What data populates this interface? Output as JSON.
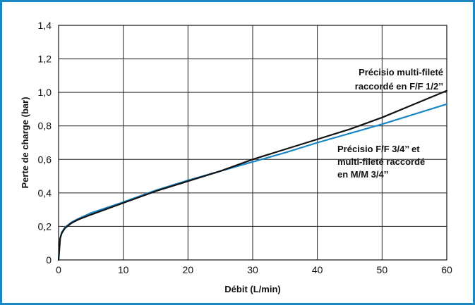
{
  "chart_data": {
    "type": "line",
    "title": "",
    "xlabel": "Débit (L/min)",
    "ylabel": "Perte de charge (bar)",
    "xlim": [
      0,
      60
    ],
    "ylim": [
      0,
      1.4
    ],
    "x_ticks": [
      "0",
      "10",
      "20",
      "30",
      "40",
      "50",
      "60"
    ],
    "y_ticks": [
      "0",
      "0,2",
      "0,4",
      "0,6",
      "0,8",
      "1,0",
      "1,2",
      "1,4"
    ],
    "grid": true,
    "frame_color": "#1a86c3",
    "series": [
      {
        "color": "#111111",
        "x": [
          0,
          0.25,
          0.5,
          1,
          2,
          3,
          5,
          10,
          15,
          20,
          25,
          30,
          35,
          40,
          45,
          50,
          55,
          60
        ],
        "y": [
          0,
          0.13,
          0.16,
          0.19,
          0.22,
          0.24,
          0.27,
          0.34,
          0.41,
          0.47,
          0.53,
          0.6,
          0.66,
          0.72,
          0.78,
          0.85,
          0.93,
          1.01
        ]
      },
      {
        "color": "#1a86c3",
        "x": [
          0,
          0.25,
          0.5,
          1,
          2,
          3,
          5,
          10,
          15,
          20,
          25,
          30,
          35,
          40,
          45,
          50,
          55,
          60
        ],
        "y": [
          0,
          0.13,
          0.165,
          0.195,
          0.225,
          0.245,
          0.28,
          0.345,
          0.415,
          0.475,
          0.53,
          0.585,
          0.64,
          0.7,
          0.755,
          0.81,
          0.87,
          0.93
        ]
      }
    ],
    "annotations": [
      {
        "lines": [
          "Précisio multi-fileté",
          "raccordé en F/F 1/2’’"
        ],
        "series_index": 0
      },
      {
        "lines": [
          "Précisio F/F 3/4’’ et",
          "multi-fileté raccordé",
          "en M/M 3/4’’"
        ],
        "series_index": 1
      }
    ]
  }
}
